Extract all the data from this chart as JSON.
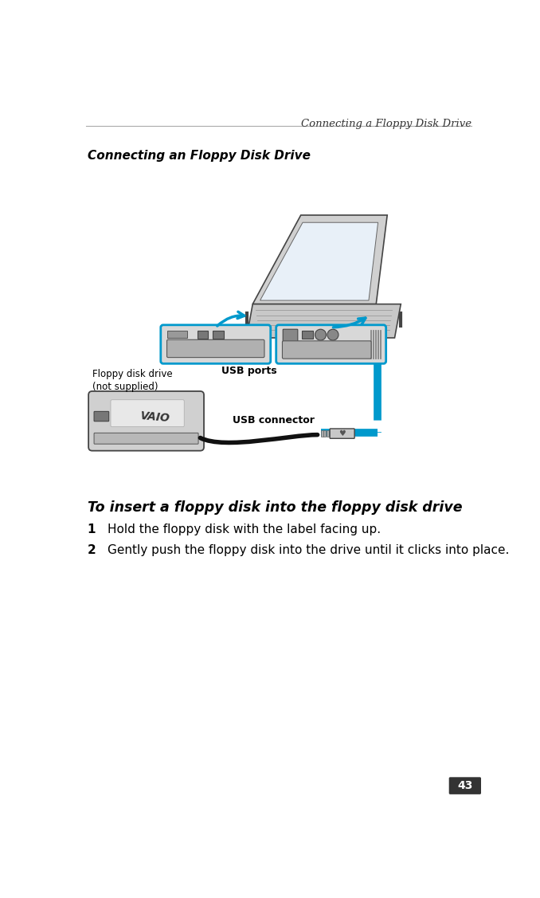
{
  "header_text": "Connecting a Floppy Disk Drive",
  "section_title": "Connecting an Floppy Disk Drive",
  "instruction_title": "To insert a floppy disk into the floppy disk drive",
  "step1_num": "1",
  "step1_text": "Hold the floppy disk with the label facing up.",
  "step2_num": "2",
  "step2_text": "Gently push the floppy disk into the drive until it clicks into place.",
  "label_floppy": "Floppy disk drive\n(not supplied)",
  "label_usb_ports": "USB ports",
  "label_usb_connector": "USB connector",
  "page_number": "43",
  "bg_color": "#ffffff",
  "text_color": "#000000",
  "blue_color": "#0099cc",
  "gray_dark": "#444444",
  "gray_mid": "#888888",
  "gray_light": "#cccccc",
  "gray_lighter": "#e0e0e0"
}
